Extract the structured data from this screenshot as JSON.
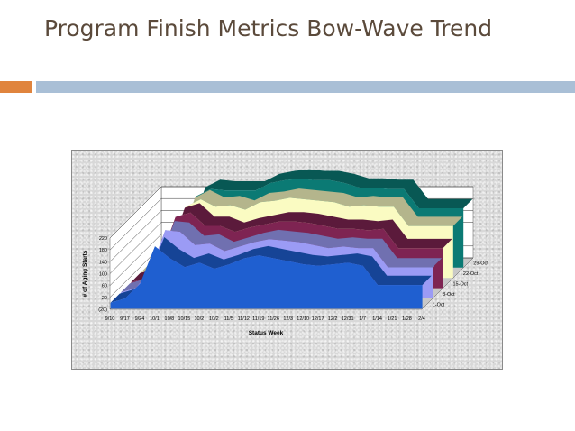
{
  "slide": {
    "title": "Program Finish Metrics Bow-Wave Trend",
    "accent_colors": {
      "left": "#e0843d",
      "right": "#a9bfd6"
    }
  },
  "chart_data": {
    "type": "area",
    "subtype": "3d-stacked-area",
    "title": "",
    "xlabel": "Status Week",
    "ylabel": "# of Aging Starts",
    "categories": [
      "9/10",
      "9/17",
      "9/24",
      "10/1",
      "10/8",
      "10/15",
      "10/2",
      "10/2",
      "11/5",
      "11/12",
      "11/19",
      "11/26",
      "12/3",
      "12/10",
      "12/17",
      "12/2",
      "12/31",
      "1/7",
      "1/14",
      "1/21",
      "1/28",
      "2/4"
    ],
    "y_ticks": [
      "(20)",
      "20",
      "60",
      "100",
      "140",
      "180",
      "220"
    ],
    "ylim": [
      -20,
      220
    ],
    "depth_series_labels": [
      "1-Oct",
      "8-Oct",
      "15-Oct",
      "22-Oct",
      "29-Oct"
    ],
    "series": [
      {
        "name": "1-Oct",
        "color": "#1f5fd0",
        "values": [
          0,
          15,
          65,
          190,
          150,
          120,
          135,
          115,
          130,
          150,
          160,
          150,
          140,
          130,
          125,
          130,
          135,
          125,
          60,
          60,
          60,
          60
        ]
      },
      {
        "name": "8-Oct",
        "color": "#9b9bf5",
        "values": [
          0,
          0,
          10,
          20,
          55,
          40,
          30,
          25,
          25,
          20,
          20,
          25,
          30,
          30,
          25,
          25,
          15,
          25,
          25,
          25,
          25,
          25
        ]
      },
      {
        "name": "15-Oct",
        "color": "#7e2452",
        "values": [
          0,
          0,
          5,
          10,
          30,
          30,
          25,
          30,
          30,
          25,
          25,
          30,
          30,
          30,
          30,
          25,
          25,
          30,
          30,
          30,
          30,
          30
        ]
      },
      {
        "name": "22-Oct",
        "color": "#fafbc2",
        "values": [
          0,
          0,
          0,
          0,
          10,
          30,
          35,
          40,
          50,
          45,
          45,
          40,
          40,
          45,
          40,
          45,
          45,
          40,
          40,
          40,
          40,
          40
        ]
      },
      {
        "name": "29-Oct",
        "color": "#0b7a74",
        "values": [
          0,
          0,
          0,
          0,
          0,
          20,
          15,
          30,
          30,
          35,
          30,
          30,
          35,
          30,
          30,
          25,
          25,
          25,
          25,
          25,
          25,
          25
        ]
      }
    ],
    "grid": true,
    "style": {
      "frame_background": "#d8d8d8",
      "wall_color": "#ffffff",
      "floor_color": "#c8c8c8"
    }
  }
}
